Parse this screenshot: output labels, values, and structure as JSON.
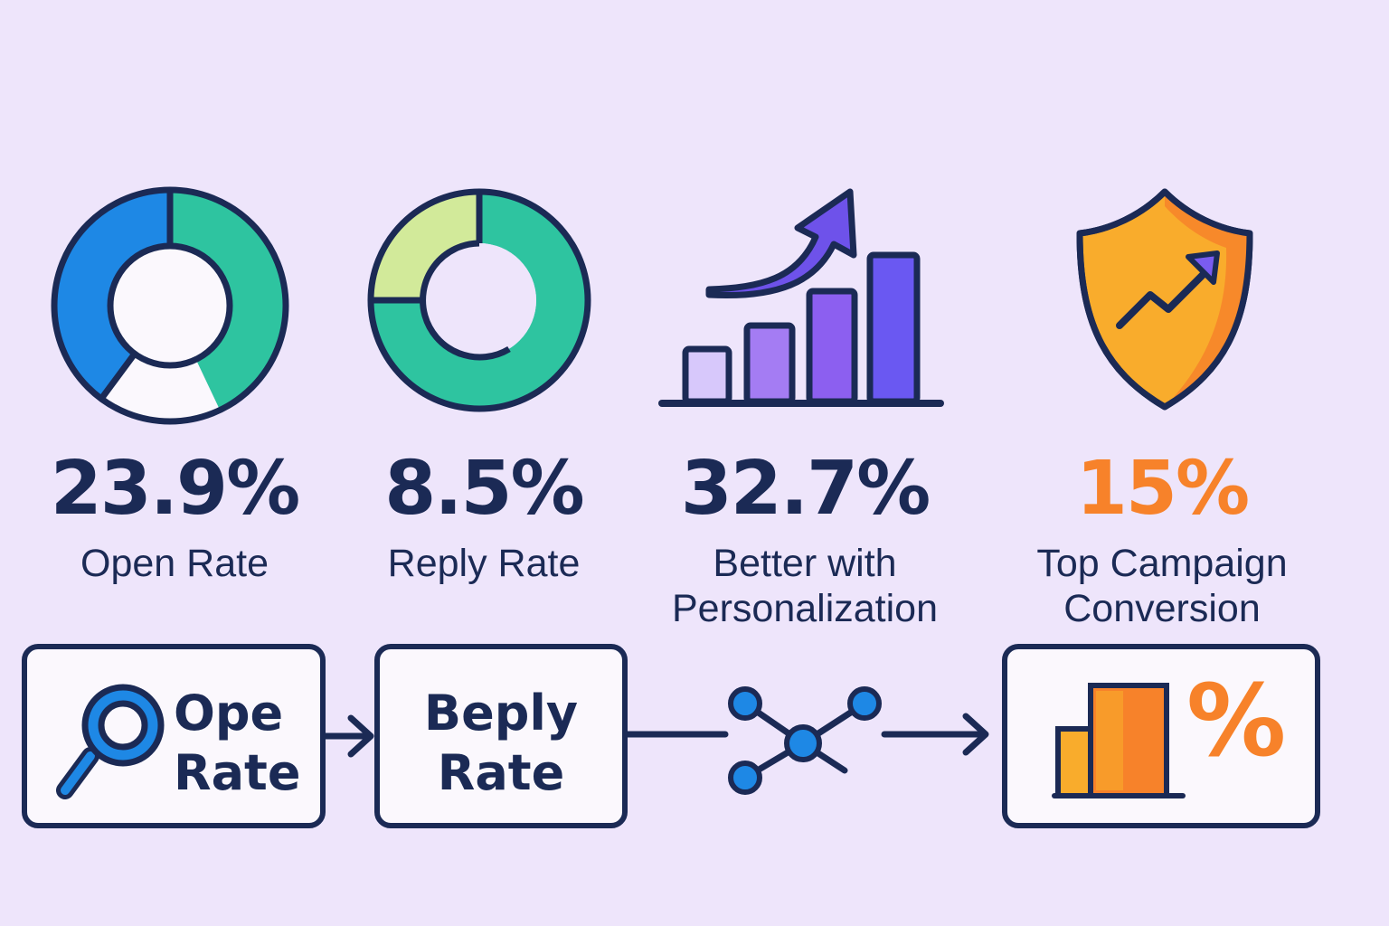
{
  "stats": [
    {
      "value": "23.9%",
      "label": "Open Rate",
      "color": "#1b2a55"
    },
    {
      "value": "8.5%",
      "label": "Reply Rate",
      "color": "#1b2a55"
    },
    {
      "value": "32.7%",
      "label_line1": "Better with",
      "label_line2": "Personalization",
      "color": "#1b2a55"
    },
    {
      "value": "15%",
      "label_line1": "Top Campaign",
      "label_line2": "Conversion",
      "color": "#f7822a"
    }
  ],
  "icons": {
    "open_rate_donut": "donut-chart-icon",
    "reply_rate_donut": "donut-chart-icon",
    "growth": "bar-chart-growth-icon",
    "shield": "shield-trend-icon",
    "search": "magnifier-icon",
    "network": "network-nodes-icon",
    "conversion": "bar-percent-icon"
  },
  "flow": {
    "box1_line1": "Ope",
    "box1_line2": "Rate",
    "box2_line1": "Beply",
    "box2_line2": "Rate",
    "box4_symbol": "%"
  },
  "colors": {
    "background": "#eee5fb",
    "navy": "#1b2a55",
    "blue": "#1e88e5",
    "teal": "#2ec4a0",
    "lime": "#d2ea9a",
    "purple": "#7a5cf0",
    "orange": "#f7822a",
    "amber": "#f9ac2c"
  }
}
